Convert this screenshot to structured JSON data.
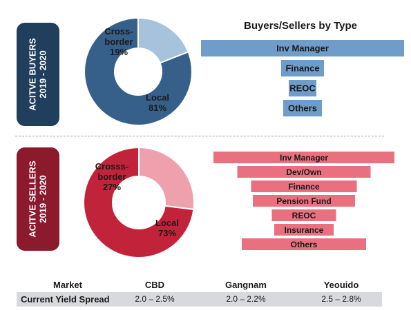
{
  "buyers_label": [
    "ACITVE BUYERS",
    "2019 - 2020"
  ],
  "sellers_label": [
    "ACITVE SELLERS",
    "2019 - 2020"
  ],
  "chart_data": [
    {
      "type": "pie",
      "segments": [
        {
          "label": [
            "Cross-",
            "border",
            "19%"
          ],
          "value": 19,
          "color": "#a7c2dc"
        },
        {
          "label": [
            "Local",
            "81%"
          ],
          "value": 81,
          "color": "#36608a"
        }
      ]
    },
    {
      "type": "bar",
      "title": "Buyers/Sellers by Type",
      "orientation": "horizontal-centered",
      "color": "#6f9cc9",
      "categories": [
        "Inv Manager",
        "Finance",
        "REOC",
        "Others"
      ]
    },
    {
      "type": "pie",
      "segments": [
        {
          "label": [
            "Crosss-",
            "border",
            "27%"
          ],
          "value": 27,
          "color": "#eea1ac"
        },
        {
          "label": [
            "Local",
            "73%"
          ],
          "value": 73,
          "color": "#c1243a"
        }
      ]
    },
    {
      "type": "bar",
      "orientation": "horizontal-centered",
      "color": "#e8707f",
      "categories": [
        "Inv Manager",
        "Dev/Own",
        "Finance",
        "Pension Fund",
        "REOC",
        "Insurance",
        "Others"
      ]
    }
  ],
  "table": {
    "headers": [
      "Market",
      "CBD",
      "Gangnam",
      "Yeouido"
    ],
    "rows": [
      [
        "Current Yield Spread",
        "2.0 – 2.5%",
        "2.0 – 2.2%",
        "2.5 – 2.8%"
      ]
    ]
  },
  "colors": {
    "buyers_dark": "#1f3f5c",
    "sellers_dark": "#8a1a2c"
  }
}
